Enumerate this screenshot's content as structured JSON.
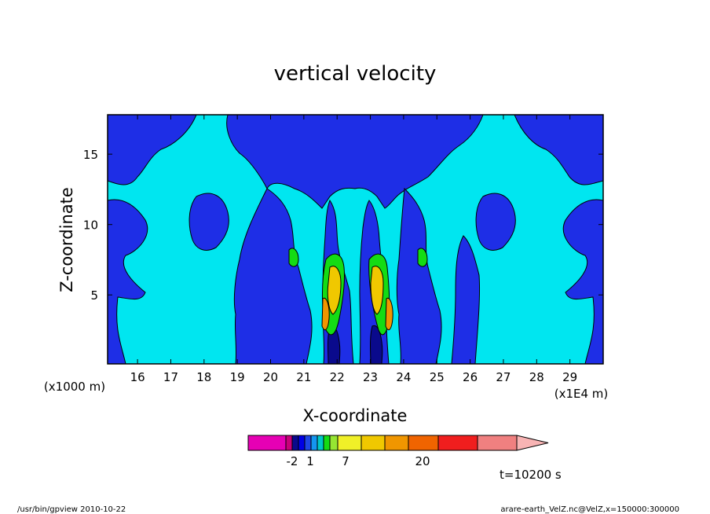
{
  "chart_data": {
    "type": "heatmap",
    "title": "vertical velocity",
    "xlabel": "X-coordinate",
    "ylabel": "Z-coordinate",
    "x_unit_left": "(x1000 m)",
    "x_unit_right": "(x1E4 m)",
    "xlim": [
      15.1,
      30.0
    ],
    "ylim": [
      0.1,
      17.8
    ],
    "x_ticks": [
      "16",
      "17",
      "18",
      "19",
      "20",
      "21",
      "22",
      "23",
      "24",
      "25",
      "26",
      "27",
      "28",
      "29"
    ],
    "y_ticks": [
      "5",
      "10",
      "15"
    ],
    "colorbar": {
      "colors": [
        "#e600b4",
        "#c8007a",
        "#0a0a8c",
        "#0000e6",
        "#1e46e6",
        "#1496f0",
        "#00c8c8",
        "#14dc14",
        "#96e632",
        "#f0f028",
        "#f0c800",
        "#f09600",
        "#f06400",
        "#f01e1e",
        "#f08080",
        "#f8b4b4"
      ],
      "labels": [
        "-2",
        "1",
        "7",
        "20"
      ]
    },
    "annotation": "t=10200 s"
  },
  "footer": {
    "left": "/usr/bin/gpview  2010-10-22",
    "right": "arare-earth_VelZ.nc@VelZ,x=150000:300000"
  }
}
